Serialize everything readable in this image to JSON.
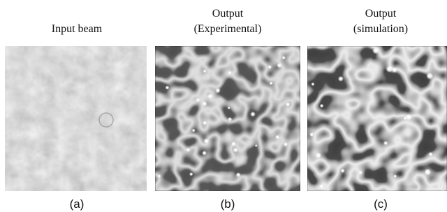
{
  "panels": [
    {
      "title": [
        "Input beam"
      ],
      "caption": "(a)"
    },
    {
      "title": [
        "Output",
        "(Experimental)"
      ],
      "caption": "(b)"
    },
    {
      "title": [
        "Output",
        "(simulation)"
      ],
      "caption": "(c)"
    }
  ]
}
